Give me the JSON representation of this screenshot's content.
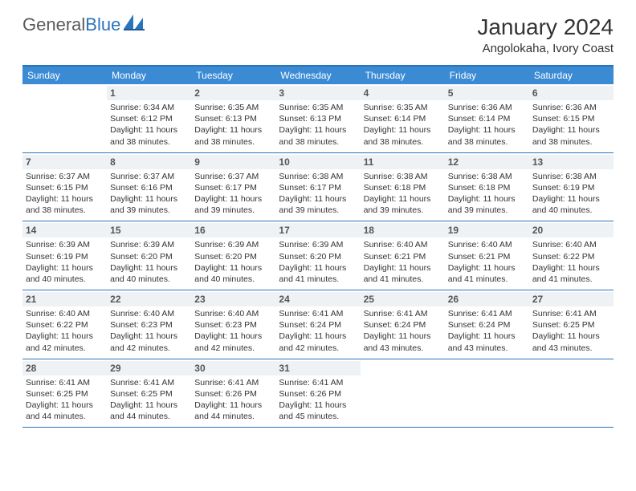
{
  "logo": {
    "word1": "General",
    "word2": "Blue"
  },
  "title": "January 2024",
  "location": "Angolokaha, Ivory Coast",
  "colors": {
    "header_bg": "#3b8bd4",
    "border": "#2a74bb",
    "daynum_bg": "#eef2f5",
    "text": "#333333",
    "logo_gray": "#5a5a5a",
    "logo_blue": "#2a74bb"
  },
  "daynames": [
    "Sunday",
    "Monday",
    "Tuesday",
    "Wednesday",
    "Thursday",
    "Friday",
    "Saturday"
  ],
  "weeks": [
    [
      {
        "n": "",
        "sunrise": "",
        "sunset": "",
        "day1": "",
        "day2": "",
        "empty": true
      },
      {
        "n": "1",
        "sunrise": "Sunrise: 6:34 AM",
        "sunset": "Sunset: 6:12 PM",
        "day1": "Daylight: 11 hours",
        "day2": "and 38 minutes."
      },
      {
        "n": "2",
        "sunrise": "Sunrise: 6:35 AM",
        "sunset": "Sunset: 6:13 PM",
        "day1": "Daylight: 11 hours",
        "day2": "and 38 minutes."
      },
      {
        "n": "3",
        "sunrise": "Sunrise: 6:35 AM",
        "sunset": "Sunset: 6:13 PM",
        "day1": "Daylight: 11 hours",
        "day2": "and 38 minutes."
      },
      {
        "n": "4",
        "sunrise": "Sunrise: 6:35 AM",
        "sunset": "Sunset: 6:14 PM",
        "day1": "Daylight: 11 hours",
        "day2": "and 38 minutes."
      },
      {
        "n": "5",
        "sunrise": "Sunrise: 6:36 AM",
        "sunset": "Sunset: 6:14 PM",
        "day1": "Daylight: 11 hours",
        "day2": "and 38 minutes."
      },
      {
        "n": "6",
        "sunrise": "Sunrise: 6:36 AM",
        "sunset": "Sunset: 6:15 PM",
        "day1": "Daylight: 11 hours",
        "day2": "and 38 minutes."
      }
    ],
    [
      {
        "n": "7",
        "sunrise": "Sunrise: 6:37 AM",
        "sunset": "Sunset: 6:15 PM",
        "day1": "Daylight: 11 hours",
        "day2": "and 38 minutes."
      },
      {
        "n": "8",
        "sunrise": "Sunrise: 6:37 AM",
        "sunset": "Sunset: 6:16 PM",
        "day1": "Daylight: 11 hours",
        "day2": "and 39 minutes."
      },
      {
        "n": "9",
        "sunrise": "Sunrise: 6:37 AM",
        "sunset": "Sunset: 6:17 PM",
        "day1": "Daylight: 11 hours",
        "day2": "and 39 minutes."
      },
      {
        "n": "10",
        "sunrise": "Sunrise: 6:38 AM",
        "sunset": "Sunset: 6:17 PM",
        "day1": "Daylight: 11 hours",
        "day2": "and 39 minutes."
      },
      {
        "n": "11",
        "sunrise": "Sunrise: 6:38 AM",
        "sunset": "Sunset: 6:18 PM",
        "day1": "Daylight: 11 hours",
        "day2": "and 39 minutes."
      },
      {
        "n": "12",
        "sunrise": "Sunrise: 6:38 AM",
        "sunset": "Sunset: 6:18 PM",
        "day1": "Daylight: 11 hours",
        "day2": "and 39 minutes."
      },
      {
        "n": "13",
        "sunrise": "Sunrise: 6:38 AM",
        "sunset": "Sunset: 6:19 PM",
        "day1": "Daylight: 11 hours",
        "day2": "and 40 minutes."
      }
    ],
    [
      {
        "n": "14",
        "sunrise": "Sunrise: 6:39 AM",
        "sunset": "Sunset: 6:19 PM",
        "day1": "Daylight: 11 hours",
        "day2": "and 40 minutes."
      },
      {
        "n": "15",
        "sunrise": "Sunrise: 6:39 AM",
        "sunset": "Sunset: 6:20 PM",
        "day1": "Daylight: 11 hours",
        "day2": "and 40 minutes."
      },
      {
        "n": "16",
        "sunrise": "Sunrise: 6:39 AM",
        "sunset": "Sunset: 6:20 PM",
        "day1": "Daylight: 11 hours",
        "day2": "and 40 minutes."
      },
      {
        "n": "17",
        "sunrise": "Sunrise: 6:39 AM",
        "sunset": "Sunset: 6:20 PM",
        "day1": "Daylight: 11 hours",
        "day2": "and 41 minutes."
      },
      {
        "n": "18",
        "sunrise": "Sunrise: 6:40 AM",
        "sunset": "Sunset: 6:21 PM",
        "day1": "Daylight: 11 hours",
        "day2": "and 41 minutes."
      },
      {
        "n": "19",
        "sunrise": "Sunrise: 6:40 AM",
        "sunset": "Sunset: 6:21 PM",
        "day1": "Daylight: 11 hours",
        "day2": "and 41 minutes."
      },
      {
        "n": "20",
        "sunrise": "Sunrise: 6:40 AM",
        "sunset": "Sunset: 6:22 PM",
        "day1": "Daylight: 11 hours",
        "day2": "and 41 minutes."
      }
    ],
    [
      {
        "n": "21",
        "sunrise": "Sunrise: 6:40 AM",
        "sunset": "Sunset: 6:22 PM",
        "day1": "Daylight: 11 hours",
        "day2": "and 42 minutes."
      },
      {
        "n": "22",
        "sunrise": "Sunrise: 6:40 AM",
        "sunset": "Sunset: 6:23 PM",
        "day1": "Daylight: 11 hours",
        "day2": "and 42 minutes."
      },
      {
        "n": "23",
        "sunrise": "Sunrise: 6:40 AM",
        "sunset": "Sunset: 6:23 PM",
        "day1": "Daylight: 11 hours",
        "day2": "and 42 minutes."
      },
      {
        "n": "24",
        "sunrise": "Sunrise: 6:41 AM",
        "sunset": "Sunset: 6:24 PM",
        "day1": "Daylight: 11 hours",
        "day2": "and 42 minutes."
      },
      {
        "n": "25",
        "sunrise": "Sunrise: 6:41 AM",
        "sunset": "Sunset: 6:24 PM",
        "day1": "Daylight: 11 hours",
        "day2": "and 43 minutes."
      },
      {
        "n": "26",
        "sunrise": "Sunrise: 6:41 AM",
        "sunset": "Sunset: 6:24 PM",
        "day1": "Daylight: 11 hours",
        "day2": "and 43 minutes."
      },
      {
        "n": "27",
        "sunrise": "Sunrise: 6:41 AM",
        "sunset": "Sunset: 6:25 PM",
        "day1": "Daylight: 11 hours",
        "day2": "and 43 minutes."
      }
    ],
    [
      {
        "n": "28",
        "sunrise": "Sunrise: 6:41 AM",
        "sunset": "Sunset: 6:25 PM",
        "day1": "Daylight: 11 hours",
        "day2": "and 44 minutes."
      },
      {
        "n": "29",
        "sunrise": "Sunrise: 6:41 AM",
        "sunset": "Sunset: 6:25 PM",
        "day1": "Daylight: 11 hours",
        "day2": "and 44 minutes."
      },
      {
        "n": "30",
        "sunrise": "Sunrise: 6:41 AM",
        "sunset": "Sunset: 6:26 PM",
        "day1": "Daylight: 11 hours",
        "day2": "and 44 minutes."
      },
      {
        "n": "31",
        "sunrise": "Sunrise: 6:41 AM",
        "sunset": "Sunset: 6:26 PM",
        "day1": "Daylight: 11 hours",
        "day2": "and 45 minutes."
      },
      {
        "n": "",
        "sunrise": "",
        "sunset": "",
        "day1": "",
        "day2": "",
        "empty": true
      },
      {
        "n": "",
        "sunrise": "",
        "sunset": "",
        "day1": "",
        "day2": "",
        "empty": true
      },
      {
        "n": "",
        "sunrise": "",
        "sunset": "",
        "day1": "",
        "day2": "",
        "empty": true
      }
    ]
  ]
}
